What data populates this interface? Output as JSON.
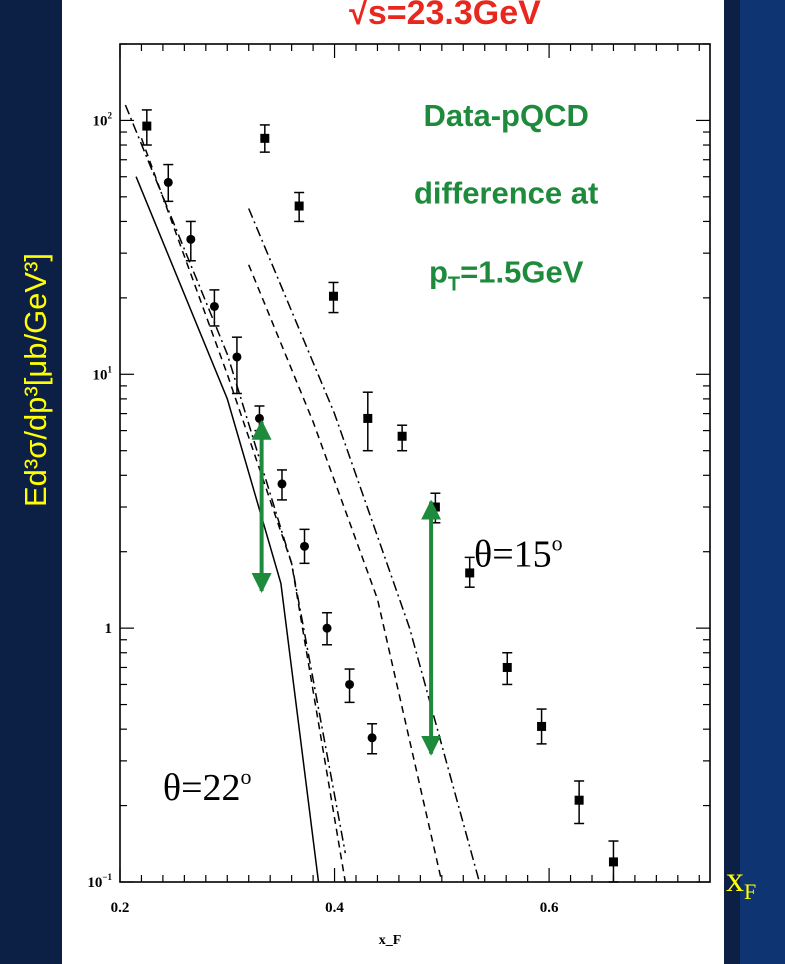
{
  "slide": {
    "top_title": "√s=23.3GeV",
    "y_title": "Ed³σ/dp³[μb/GeV³]",
    "x_title_main": "x",
    "x_title_sub": "F",
    "colors": {
      "background": "#0c1f45",
      "accent_title": "#e8281e",
      "label": "#ffff00",
      "annotation": "#1e8a3c"
    }
  },
  "chart_data": {
    "type": "scatter",
    "xlabel": "x_F",
    "xlim": [
      0.2,
      0.75
    ],
    "ylim": [
      0.1,
      200
    ],
    "yscale": "log",
    "x_ticks": [
      {
        "v": 0.2,
        "label": "0.2"
      },
      {
        "v": 0.4,
        "label": "0.4"
      },
      {
        "v": 0.6,
        "label": "0.6"
      }
    ],
    "y_ticks": [
      {
        "v": 100,
        "label": "10",
        "sup": "2"
      },
      {
        "v": 10,
        "label": "10",
        "sup": "1"
      },
      {
        "v": 1,
        "label": "1",
        "sup": ""
      },
      {
        "v": 0.1,
        "label": "10",
        "sup": "−1"
      }
    ],
    "series": [
      {
        "marker": "circle",
        "points": [
          {
            "x": 0.245,
            "y": 57,
            "lo": 48,
            "hi": 67
          },
          {
            "x": 0.266,
            "y": 34,
            "lo": 28,
            "hi": 40
          },
          {
            "x": 0.288,
            "y": 18.5,
            "lo": 15.5,
            "hi": 21.5
          },
          {
            "x": 0.309,
            "y": 11.7,
            "lo": 8.4,
            "hi": 14
          },
          {
            "x": 0.33,
            "y": 6.7,
            "lo": 6.0,
            "hi": 7.5
          },
          {
            "x": 0.351,
            "y": 3.7,
            "lo": 3.2,
            "hi": 4.2
          },
          {
            "x": 0.372,
            "y": 2.1,
            "lo": 1.8,
            "hi": 2.45
          },
          {
            "x": 0.393,
            "y": 1.0,
            "lo": 0.86,
            "hi": 1.15
          },
          {
            "x": 0.414,
            "y": 0.6,
            "lo": 0.51,
            "hi": 0.69
          },
          {
            "x": 0.435,
            "y": 0.37,
            "lo": 0.32,
            "hi": 0.42
          }
        ]
      },
      {
        "marker": "square",
        "points": [
          {
            "x": 0.225,
            "y": 95,
            "lo": 80,
            "hi": 110
          },
          {
            "x": 0.335,
            "y": 85,
            "lo": 75,
            "hi": 96
          },
          {
            "x": 0.367,
            "y": 46,
            "lo": 40,
            "hi": 52
          },
          {
            "x": 0.399,
            "y": 20.3,
            "lo": 17.5,
            "hi": 23
          },
          {
            "x": 0.431,
            "y": 6.7,
            "lo": 5.0,
            "hi": 8.5
          },
          {
            "x": 0.463,
            "y": 5.7,
            "lo": 5.0,
            "hi": 6.3
          },
          {
            "x": 0.494,
            "y": 3.0,
            "lo": 2.6,
            "hi": 3.4
          },
          {
            "x": 0.526,
            "y": 1.65,
            "lo": 1.45,
            "hi": 1.9
          },
          {
            "x": 0.561,
            "y": 0.7,
            "lo": 0.6,
            "hi": 0.8
          },
          {
            "x": 0.593,
            "y": 0.41,
            "lo": 0.35,
            "hi": 0.48
          },
          {
            "x": 0.628,
            "y": 0.21,
            "lo": 0.17,
            "hi": 0.25
          },
          {
            "x": 0.66,
            "y": 0.12,
            "lo": 0.1,
            "hi": 0.145
          }
        ]
      }
    ],
    "curves": [
      {
        "style": "solid",
        "points": [
          [
            0.215,
            60
          ],
          [
            0.3,
            8
          ],
          [
            0.35,
            1.5
          ],
          [
            0.385,
            0.1
          ]
        ]
      },
      {
        "style": "dashed",
        "points": [
          [
            0.22,
            85
          ],
          [
            0.3,
            10
          ],
          [
            0.36,
            1.8
          ],
          [
            0.41,
            0.1
          ]
        ]
      },
      {
        "style": "dashdot",
        "points": [
          [
            0.205,
            115
          ],
          [
            0.3,
            12
          ],
          [
            0.36,
            1.8
          ],
          [
            0.41,
            0.13
          ]
        ]
      },
      {
        "style": "dashed",
        "points": [
          [
            0.32,
            27
          ],
          [
            0.38,
            6.5
          ],
          [
            0.44,
            1.3
          ],
          [
            0.5,
            0.1
          ]
        ]
      },
      {
        "style": "dashdot",
        "points": [
          [
            0.32,
            45
          ],
          [
            0.4,
            7
          ],
          [
            0.47,
            1
          ],
          [
            0.535,
            0.1
          ]
        ]
      }
    ],
    "annotations": [
      {
        "text": "Data-pQCD",
        "x": 0.56,
        "y": 95
      },
      {
        "text": "difference at",
        "x": 0.56,
        "y": 47
      },
      {
        "text": "p",
        "sub": "T",
        "after": "=1.5GeV",
        "x": 0.56,
        "y": 23
      },
      {
        "text": "θ=15",
        "sup": "o",
        "x": 0.53,
        "y": 1.75
      },
      {
        "text": "θ=22",
        "sup": "o",
        "x": 0.24,
        "y": 0.21
      }
    ],
    "arrows": [
      {
        "x": 0.332,
        "y1": 6.5,
        "y2": 1.4
      },
      {
        "x": 0.49,
        "y1": 3.15,
        "y2": 0.32
      }
    ]
  }
}
